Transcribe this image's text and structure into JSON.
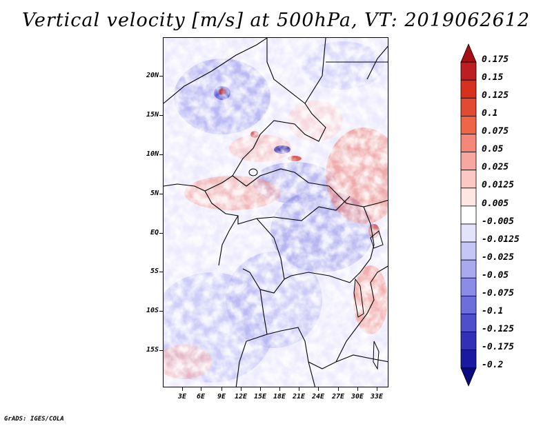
{
  "title": "Vertical velocity [m/s] at 500hPa, VT: 2019062612",
  "footer": "GrADS: IGES/COLA",
  "map": {
    "lat_labels": [
      "20N",
      "15N",
      "10N",
      "5N",
      "EQ",
      "5S",
      "10S",
      "15S"
    ],
    "lon_labels": [
      "3E",
      "6E",
      "9E",
      "12E",
      "15E",
      "18E",
      "21E",
      "24E",
      "27E",
      "30E",
      "33E"
    ]
  },
  "colorbar": {
    "labels": [
      "0.175",
      "0.15",
      "0.125",
      "0.1",
      "0.075",
      "0.05",
      "0.025",
      "0.0125",
      "0.005",
      "-0.005",
      "-0.0125",
      "-0.025",
      "-0.05",
      "-0.075",
      "-0.1",
      "-0.125",
      "-0.175",
      "-0.2"
    ],
    "colors": [
      "#a50f15",
      "#bd1e24",
      "#d7301f",
      "#e34a33",
      "#ef6548",
      "#f4877a",
      "#f8a7a0",
      "#fbc8c4",
      "#fde6e4",
      "#ffffff",
      "#e3e3fb",
      "#c6c6f6",
      "#a9a9f0",
      "#8b8be8",
      "#6d6ddc",
      "#4f4fcc",
      "#3131b8",
      "#1a1aa0",
      "#0b0b80"
    ]
  }
}
